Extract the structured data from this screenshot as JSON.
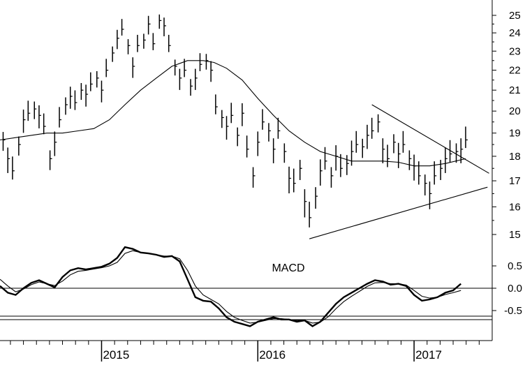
{
  "chart_data": [
    {
      "type": "ohlc",
      "panel": "price",
      "ylim": [
        14,
        25.7
      ],
      "yticks": [
        "15",
        "16",
        "17",
        "18",
        "19",
        "20",
        "21",
        "22",
        "23",
        "24",
        "25"
      ],
      "x_range": [
        2014.35,
        2017.5
      ],
      "x_labels": [
        "2015",
        "2016",
        "2017"
      ],
      "grid": false,
      "series": [
        {
          "kind": "price_bars",
          "points": [
            [
              2014.37,
              18.7
            ],
            [
              2014.4,
              17.9
            ],
            [
              2014.43,
              17.4
            ],
            [
              2014.47,
              18.5
            ],
            [
              2014.5,
              19.6
            ],
            [
              2014.53,
              19.9
            ],
            [
              2014.57,
              20.1
            ],
            [
              2014.6,
              19.8
            ],
            [
              2014.63,
              19.3
            ],
            [
              2014.67,
              17.9
            ],
            [
              2014.7,
              18.6
            ],
            [
              2014.73,
              19.6
            ],
            [
              2014.77,
              20.3
            ],
            [
              2014.8,
              20.7
            ],
            [
              2014.83,
              20.4
            ],
            [
              2014.87,
              21.0
            ],
            [
              2014.9,
              20.8
            ],
            [
              2014.93,
              21.3
            ],
            [
              2014.97,
              21.6
            ],
            [
              2015.0,
              21.0
            ],
            [
              2015.03,
              22.0
            ],
            [
              2015.07,
              22.9
            ],
            [
              2015.1,
              23.7
            ],
            [
              2015.13,
              24.2
            ],
            [
              2015.17,
              23.3
            ],
            [
              2015.2,
              22.2
            ],
            [
              2015.23,
              23.3
            ],
            [
              2015.27,
              23.6
            ],
            [
              2015.3,
              24.5
            ],
            [
              2015.33,
              23.4
            ],
            [
              2015.37,
              24.7
            ],
            [
              2015.4,
              24.4
            ],
            [
              2015.43,
              23.3
            ],
            [
              2015.47,
              22.2
            ],
            [
              2015.5,
              21.6
            ],
            [
              2015.53,
              22.0
            ],
            [
              2015.57,
              21.2
            ],
            [
              2015.6,
              21.6
            ],
            [
              2015.63,
              22.3
            ],
            [
              2015.67,
              22.5
            ],
            [
              2015.7,
              22.0
            ],
            [
              2015.73,
              20.2
            ],
            [
              2015.77,
              19.7
            ],
            [
              2015.8,
              19.3
            ],
            [
              2015.83,
              19.8
            ],
            [
              2015.87,
              18.9
            ],
            [
              2015.9,
              19.9
            ],
            [
              2015.93,
              18.3
            ],
            [
              2015.97,
              17.2
            ],
            [
              2016.0,
              18.6
            ],
            [
              2016.03,
              19.5
            ],
            [
              2016.07,
              19.1
            ],
            [
              2016.1,
              18.3
            ],
            [
              2016.13,
              19.1
            ],
            [
              2016.17,
              18.2
            ],
            [
              2016.2,
              17.1
            ],
            [
              2016.23,
              16.9
            ],
            [
              2016.27,
              17.5
            ],
            [
              2016.3,
              16.2
            ],
            [
              2016.33,
              15.6
            ],
            [
              2016.37,
              16.4
            ],
            [
              2016.4,
              17.4
            ],
            [
              2016.43,
              17.8
            ],
            [
              2016.47,
              17.2
            ],
            [
              2016.5,
              18.0
            ],
            [
              2016.53,
              17.5
            ],
            [
              2016.57,
              17.7
            ],
            [
              2016.6,
              18.2
            ],
            [
              2016.63,
              18.5
            ],
            [
              2016.67,
              18.4
            ],
            [
              2016.7,
              18.9
            ],
            [
              2016.73,
              19.1
            ],
            [
              2016.77,
              19.5
            ],
            [
              2016.8,
              18.3
            ],
            [
              2016.83,
              17.9
            ],
            [
              2016.87,
              18.6
            ],
            [
              2016.9,
              18.1
            ],
            [
              2016.93,
              18.5
            ],
            [
              2016.97,
              17.9
            ],
            [
              2017.0,
              17.6
            ],
            [
              2017.03,
              17.2
            ],
            [
              2017.07,
              16.9
            ],
            [
              2017.1,
              16.5
            ],
            [
              2017.13,
              17.2
            ],
            [
              2017.17,
              17.5
            ],
            [
              2017.2,
              17.9
            ],
            [
              2017.23,
              18.1
            ],
            [
              2017.27,
              18.2
            ],
            [
              2017.3,
              18.3
            ],
            [
              2017.33,
              18.7
            ]
          ]
        },
        {
          "kind": "moving_average",
          "points": [
            [
              2014.35,
              18.7
            ],
            [
              2014.45,
              18.8
            ],
            [
              2014.55,
              18.9
            ],
            [
              2014.65,
              19.0
            ],
            [
              2014.75,
              19.0
            ],
            [
              2014.85,
              19.1
            ],
            [
              2014.95,
              19.2
            ],
            [
              2015.05,
              19.6
            ],
            [
              2015.15,
              20.3
            ],
            [
              2015.25,
              21.0
            ],
            [
              2015.35,
              21.6
            ],
            [
              2015.45,
              22.2
            ],
            [
              2015.55,
              22.5
            ],
            [
              2015.65,
              22.5
            ],
            [
              2015.72,
              22.4
            ],
            [
              2015.8,
              22.1
            ],
            [
              2015.9,
              21.5
            ],
            [
              2016.0,
              20.6
            ],
            [
              2016.1,
              19.8
            ],
            [
              2016.2,
              19.1
            ],
            [
              2016.3,
              18.6
            ],
            [
              2016.4,
              18.2
            ],
            [
              2016.5,
              18.0
            ],
            [
              2016.6,
              17.8
            ],
            [
              2016.7,
              17.8
            ],
            [
              2016.8,
              17.8
            ],
            [
              2016.9,
              17.75
            ],
            [
              2017.0,
              17.6
            ],
            [
              2017.1,
              17.6
            ],
            [
              2017.2,
              17.7
            ],
            [
              2017.33,
              17.9
            ]
          ]
        },
        {
          "kind": "trendline_upper",
          "points": [
            [
              2016.73,
              20.3
            ],
            [
              2017.48,
              17.3
            ]
          ]
        },
        {
          "kind": "trendline_lower",
          "points": [
            [
              2016.33,
              14.85
            ],
            [
              2017.47,
              16.75
            ]
          ]
        }
      ]
    },
    {
      "type": "line",
      "panel": "indicator",
      "title": "MACD",
      "ylim": [
        -1.05,
        1.2
      ],
      "yticks": [
        "-0.5",
        "0.0",
        "0.5"
      ],
      "series": [
        {
          "kind": "macd_line",
          "points": [
            [
              2014.35,
              0.05
            ],
            [
              2014.4,
              -0.1
            ],
            [
              2014.45,
              -0.15
            ],
            [
              2014.5,
              0.0
            ],
            [
              2014.55,
              0.12
            ],
            [
              2014.6,
              0.18
            ],
            [
              2014.65,
              0.1
            ],
            [
              2014.7,
              0.02
            ],
            [
              2014.75,
              0.25
            ],
            [
              2014.8,
              0.4
            ],
            [
              2014.85,
              0.45
            ],
            [
              2014.9,
              0.42
            ],
            [
              2014.95,
              0.45
            ],
            [
              2015.0,
              0.48
            ],
            [
              2015.05,
              0.55
            ],
            [
              2015.1,
              0.68
            ],
            [
              2015.15,
              0.92
            ],
            [
              2015.2,
              0.88
            ],
            [
              2015.25,
              0.8
            ],
            [
              2015.3,
              0.78
            ],
            [
              2015.35,
              0.75
            ],
            [
              2015.4,
              0.7
            ],
            [
              2015.45,
              0.72
            ],
            [
              2015.5,
              0.6
            ],
            [
              2015.55,
              0.2
            ],
            [
              2015.6,
              -0.2
            ],
            [
              2015.65,
              -0.28
            ],
            [
              2015.7,
              -0.3
            ],
            [
              2015.75,
              -0.45
            ],
            [
              2015.8,
              -0.65
            ],
            [
              2015.85,
              -0.75
            ],
            [
              2015.9,
              -0.8
            ],
            [
              2015.95,
              -0.85
            ],
            [
              2016.0,
              -0.75
            ],
            [
              2016.05,
              -0.7
            ],
            [
              2016.1,
              -0.65
            ],
            [
              2016.15,
              -0.7
            ],
            [
              2016.2,
              -0.7
            ],
            [
              2016.25,
              -0.75
            ],
            [
              2016.3,
              -0.72
            ],
            [
              2016.35,
              -0.85
            ],
            [
              2016.4,
              -0.75
            ],
            [
              2016.45,
              -0.55
            ],
            [
              2016.5,
              -0.35
            ],
            [
              2016.55,
              -0.2
            ],
            [
              2016.6,
              -0.1
            ],
            [
              2016.65,
              0.0
            ],
            [
              2016.7,
              0.1
            ],
            [
              2016.75,
              0.18
            ],
            [
              2016.8,
              0.15
            ],
            [
              2016.85,
              0.08
            ],
            [
              2016.9,
              0.1
            ],
            [
              2016.95,
              0.05
            ],
            [
              2017.0,
              -0.15
            ],
            [
              2017.05,
              -0.28
            ],
            [
              2017.1,
              -0.25
            ],
            [
              2017.15,
              -0.2
            ],
            [
              2017.2,
              -0.1
            ],
            [
              2017.25,
              -0.05
            ],
            [
              2017.3,
              0.1
            ]
          ]
        },
        {
          "kind": "signal_line",
          "points": [
            [
              2014.35,
              0.2
            ],
            [
              2014.4,
              0.05
            ],
            [
              2014.45,
              -0.08
            ],
            [
              2014.5,
              -0.02
            ],
            [
              2014.55,
              0.08
            ],
            [
              2014.6,
              0.14
            ],
            [
              2014.65,
              0.1
            ],
            [
              2014.7,
              0.06
            ],
            [
              2014.75,
              0.16
            ],
            [
              2014.8,
              0.3
            ],
            [
              2014.85,
              0.38
            ],
            [
              2014.9,
              0.4
            ],
            [
              2014.95,
              0.43
            ],
            [
              2015.0,
              0.46
            ],
            [
              2015.05,
              0.5
            ],
            [
              2015.1,
              0.58
            ],
            [
              2015.15,
              0.78
            ],
            [
              2015.2,
              0.84
            ],
            [
              2015.25,
              0.8
            ],
            [
              2015.3,
              0.78
            ],
            [
              2015.35,
              0.75
            ],
            [
              2015.4,
              0.72
            ],
            [
              2015.45,
              0.72
            ],
            [
              2015.5,
              0.66
            ],
            [
              2015.55,
              0.4
            ],
            [
              2015.6,
              0.05
            ],
            [
              2015.65,
              -0.15
            ],
            [
              2015.7,
              -0.25
            ],
            [
              2015.75,
              -0.35
            ],
            [
              2015.8,
              -0.52
            ],
            [
              2015.85,
              -0.65
            ],
            [
              2015.9,
              -0.72
            ],
            [
              2015.95,
              -0.78
            ],
            [
              2016.0,
              -0.76
            ],
            [
              2016.05,
              -0.72
            ],
            [
              2016.1,
              -0.68
            ],
            [
              2016.15,
              -0.68
            ],
            [
              2016.2,
              -0.7
            ],
            [
              2016.25,
              -0.72
            ],
            [
              2016.3,
              -0.72
            ],
            [
              2016.35,
              -0.78
            ],
            [
              2016.4,
              -0.76
            ],
            [
              2016.45,
              -0.64
            ],
            [
              2016.5,
              -0.46
            ],
            [
              2016.55,
              -0.3
            ],
            [
              2016.6,
              -0.18
            ],
            [
              2016.65,
              -0.07
            ],
            [
              2016.7,
              0.04
            ],
            [
              2016.75,
              0.12
            ],
            [
              2016.8,
              0.13
            ],
            [
              2016.85,
              0.1
            ],
            [
              2016.9,
              0.1
            ],
            [
              2016.95,
              0.07
            ],
            [
              2017.0,
              -0.05
            ],
            [
              2017.05,
              -0.18
            ],
            [
              2017.1,
              -0.22
            ],
            [
              2017.15,
              -0.2
            ],
            [
              2017.2,
              -0.14
            ],
            [
              2017.25,
              -0.1
            ],
            [
              2017.3,
              -0.05
            ]
          ]
        }
      ]
    }
  ]
}
